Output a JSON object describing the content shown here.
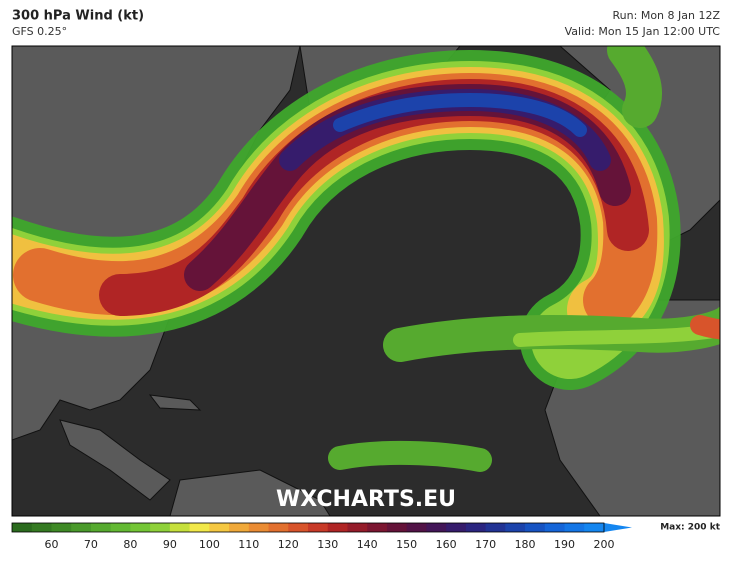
{
  "header": {
    "title": "300 hPa Wind (kt)",
    "model": "GFS 0.25°",
    "run": "Run: Mon 8 Jan 12Z",
    "valid": "Valid: Mon 15 Jan 12:00 UTC"
  },
  "watermark": "WXCHARTS.EU",
  "colorbar": {
    "colors": [
      "#2b6b1e",
      "#357a22",
      "#3f8a26",
      "#4a9a2b",
      "#56aa2f",
      "#63b933",
      "#74c636",
      "#8fd13a",
      "#c6e03c",
      "#f2e94a",
      "#f5c842",
      "#f0a93a",
      "#ea8c34",
      "#e2702f",
      "#d8542b",
      "#c83a28",
      "#b02525",
      "#951c2a",
      "#7c1631",
      "#651339",
      "#521347",
      "#431658",
      "#361c6c",
      "#2b2580",
      "#223394",
      "#1c43ab",
      "#1753c2",
      "#1565d8",
      "#1476e6",
      "#1486f0"
    ],
    "ticks": [
      60,
      70,
      80,
      90,
      100,
      110,
      120,
      130,
      140,
      150,
      160,
      170,
      180,
      190,
      200
    ],
    "max_label": "Max: 200 kt"
  }
}
